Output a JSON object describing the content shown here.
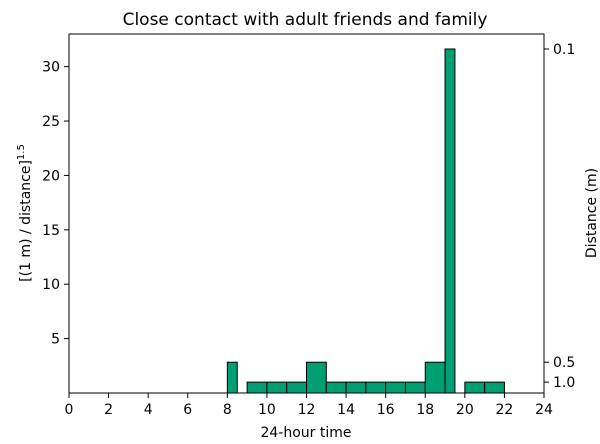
{
  "chart_data": {
    "type": "bar",
    "title": "Close contact with adult friends and family",
    "xlabel": "24-hour time",
    "ylabel": "[(1 m) / distance]",
    "ylabel_exponent": "1.5",
    "y2label": "Distance (m)",
    "xlim": [
      0,
      24
    ],
    "ylim": [
      0,
      33
    ],
    "x_ticks": [
      "0",
      "2",
      "4",
      "6",
      "8",
      "10",
      "12",
      "14",
      "16",
      "18",
      "20",
      "22",
      "24"
    ],
    "y_ticks": [
      "5",
      "10",
      "15",
      "20",
      "25",
      "30"
    ],
    "y2_ticks": [
      "0.1",
      "0.5",
      "1.0"
    ],
    "bar_color": "#009e73",
    "bars": [
      {
        "start": 8.0,
        "end": 8.5,
        "value": 2.83
      },
      {
        "start": 9.0,
        "end": 10.0,
        "value": 1.0
      },
      {
        "start": 10.0,
        "end": 11.0,
        "value": 1.0
      },
      {
        "start": 11.0,
        "end": 12.0,
        "value": 1.0
      },
      {
        "start": 12.0,
        "end": 13.0,
        "value": 2.83
      },
      {
        "start": 13.0,
        "end": 14.0,
        "value": 1.0
      },
      {
        "start": 14.0,
        "end": 15.0,
        "value": 1.0
      },
      {
        "start": 15.0,
        "end": 16.0,
        "value": 1.0
      },
      {
        "start": 16.0,
        "end": 17.0,
        "value": 1.0
      },
      {
        "start": 17.0,
        "end": 18.0,
        "value": 1.0
      },
      {
        "start": 18.0,
        "end": 19.0,
        "value": 2.83
      },
      {
        "start": 19.0,
        "end": 19.5,
        "value": 31.62
      },
      {
        "start": 20.0,
        "end": 21.0,
        "value": 1.0
      },
      {
        "start": 21.0,
        "end": 22.0,
        "value": 1.0
      }
    ]
  }
}
